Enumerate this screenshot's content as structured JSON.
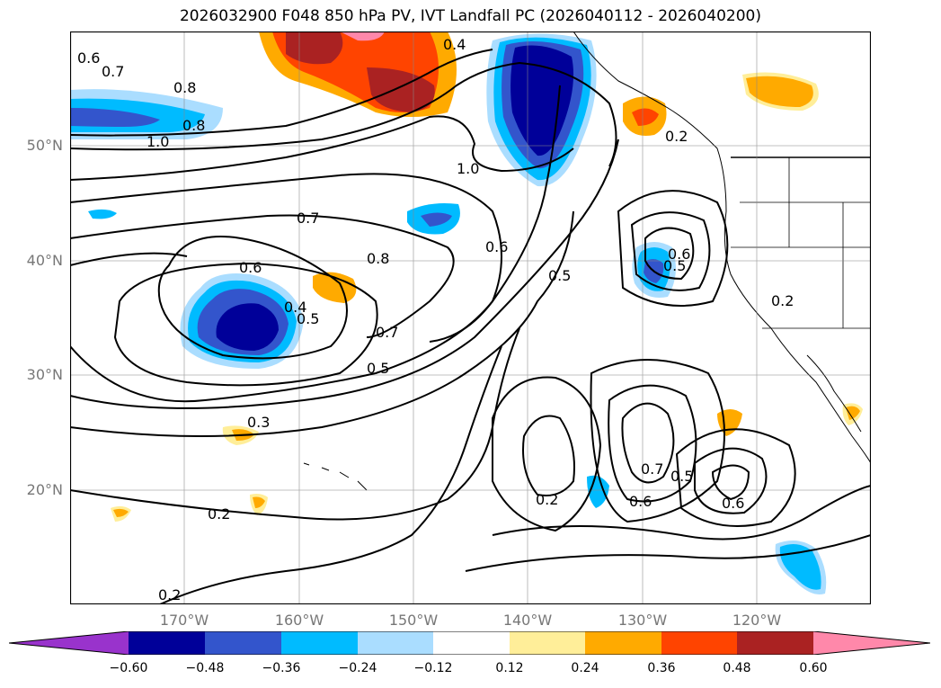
{
  "title": "2026032900 F048 850 hPa PV, IVT Landfall PC (2026040112 - 2026040200)",
  "lat_labels": [
    "50°N",
    "40°N",
    "30°N",
    "20°N"
  ],
  "lon_labels": [
    "170°W",
    "160°W",
    "150°W",
    "140°W",
    "130°W",
    "120°W"
  ],
  "colorbar": {
    "ticks": [
      "−0.60",
      "−0.48",
      "−0.36",
      "−0.24",
      "−0.12",
      "0.12",
      "0.24",
      "0.36",
      "0.48",
      "0.60"
    ],
    "colors": [
      "#9933cc",
      "#000099",
      "#3355cc",
      "#00bbff",
      "#aaddff",
      "#ffffff",
      "#ffee99",
      "#ffaa00",
      "#ff4400",
      "#aa2222",
      "#ff88aa"
    ]
  },
  "contour_labels": {
    "c1": "0.6",
    "c2": "0.7",
    "c3": "0.8",
    "c4": "0.8",
    "c5": "1.0",
    "c6": "0.4",
    "c7": "1.0",
    "c8": "0.7",
    "c9": "0.8",
    "c10": "0.6",
    "c11": "0.6",
    "c12": "0.4",
    "c13": "0.5",
    "c14": "0.7",
    "c15": "0.5",
    "c16": "0.5",
    "c17": "0.6",
    "c18": "0.5",
    "c19": "0.2",
    "c20": "0.2",
    "c21": "0.3",
    "c22": "0.2",
    "c23": "0.2",
    "c24": "0.7",
    "c25": "0.5",
    "c26": "0.6",
    "c27": "0.6",
    "c28": "0.2"
  }
}
